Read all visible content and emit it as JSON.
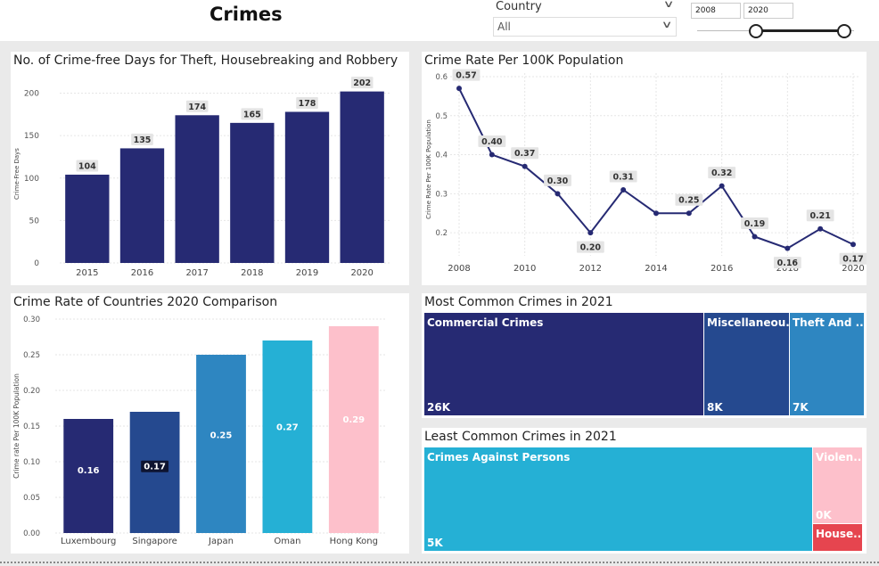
{
  "header": {
    "title": "Crimes"
  },
  "country_slicer": {
    "label": "Country",
    "value": "All"
  },
  "year_slicer": {
    "start": "2008",
    "end": "2020"
  },
  "colors": {
    "navy": "#262a73",
    "blue": "#25498f",
    "mid_blue": "#2e86c1",
    "cyan": "#25b0d5",
    "pink": "#fdc0cb",
    "red": "#e6454f",
    "label_bg": "#e4e4e4"
  },
  "chart_data": [
    {
      "id": "crime-free-days",
      "type": "bar",
      "title": "No. of Crime-free Days for Theft, Housebreaking and Robbery",
      "xlabel": "",
      "ylabel": "Crime-Free Days",
      "categories": [
        "2015",
        "2016",
        "2017",
        "2018",
        "2019",
        "2020"
      ],
      "values": [
        104,
        135,
        174,
        165,
        178,
        202
      ],
      "ylim": [
        0,
        210
      ],
      "yticks": [
        0,
        50,
        100,
        150,
        200
      ],
      "grid": true
    },
    {
      "id": "crime-rate-line",
      "type": "line",
      "title": "Crime Rate Per 100K Population",
      "xlabel": "",
      "ylabel": "Crime Rate Per 100K Population",
      "x": [
        2008,
        2009,
        2010,
        2011,
        2012,
        2013,
        2014,
        2015,
        2016,
        2017,
        2018,
        2019,
        2020
      ],
      "values": [
        0.57,
        0.4,
        0.37,
        0.3,
        0.2,
        0.31,
        0.25,
        0.25,
        0.32,
        0.19,
        0.16,
        0.21,
        0.17
      ],
      "point_labels": [
        "0.57",
        "0.40",
        "0.37",
        "0.30",
        "0.20",
        "0.31",
        "",
        "0.25",
        "0.32",
        "0.19",
        "0.16",
        "0.21",
        "0.17"
      ],
      "xticks": [
        "2008",
        "2010",
        "2012",
        "2014",
        "2016",
        "2018",
        "2020"
      ],
      "yticks": [
        "0.2",
        "0.3",
        "0.4",
        "0.5",
        "0.6"
      ],
      "ylim": [
        0.15,
        0.6
      ],
      "grid": true
    },
    {
      "id": "country-comparison",
      "type": "bar",
      "title": "Crime Rate of Countries 2020 Comparison",
      "xlabel": "",
      "ylabel": "Crime rate Per 100K Population",
      "categories": [
        "Luxembourg",
        "Singapore",
        "Japan",
        "Oman",
        "Hong Kong"
      ],
      "values": [
        0.16,
        0.17,
        0.25,
        0.27,
        0.29
      ],
      "value_labels": [
        "0.16",
        "0.17",
        "0.25",
        "0.27",
        "0.29"
      ],
      "bar_colors": [
        "#262a73",
        "#25498f",
        "#2e86c1",
        "#25b0d5",
        "#fdc0cb"
      ],
      "ylim": [
        0,
        0.3
      ],
      "yticks": [
        "0.00",
        "0.05",
        "0.10",
        "0.15",
        "0.20",
        "0.25",
        "0.30"
      ],
      "grid": true
    },
    {
      "id": "most-common-crimes",
      "type": "treemap",
      "title": "Most Common Crimes in 2021",
      "items": [
        {
          "label": "Commercial Crimes",
          "value": "26K",
          "color": "#262a73"
        },
        {
          "label": "Miscellaneou...",
          "value": "8K",
          "color": "#25498f"
        },
        {
          "label": "Theft And ...",
          "value": "7K",
          "color": "#2e86c1"
        }
      ]
    },
    {
      "id": "least-common-crimes",
      "type": "treemap",
      "title": "Least Common Crimes in 2021",
      "items": [
        {
          "label": "Crimes Against Persons",
          "value": "5K",
          "color": "#25b0d5"
        },
        {
          "label": "Violen...",
          "value": "0K",
          "color": "#fdc0cb"
        },
        {
          "label": "House...",
          "value": "",
          "color": "#e6454f"
        }
      ]
    }
  ]
}
